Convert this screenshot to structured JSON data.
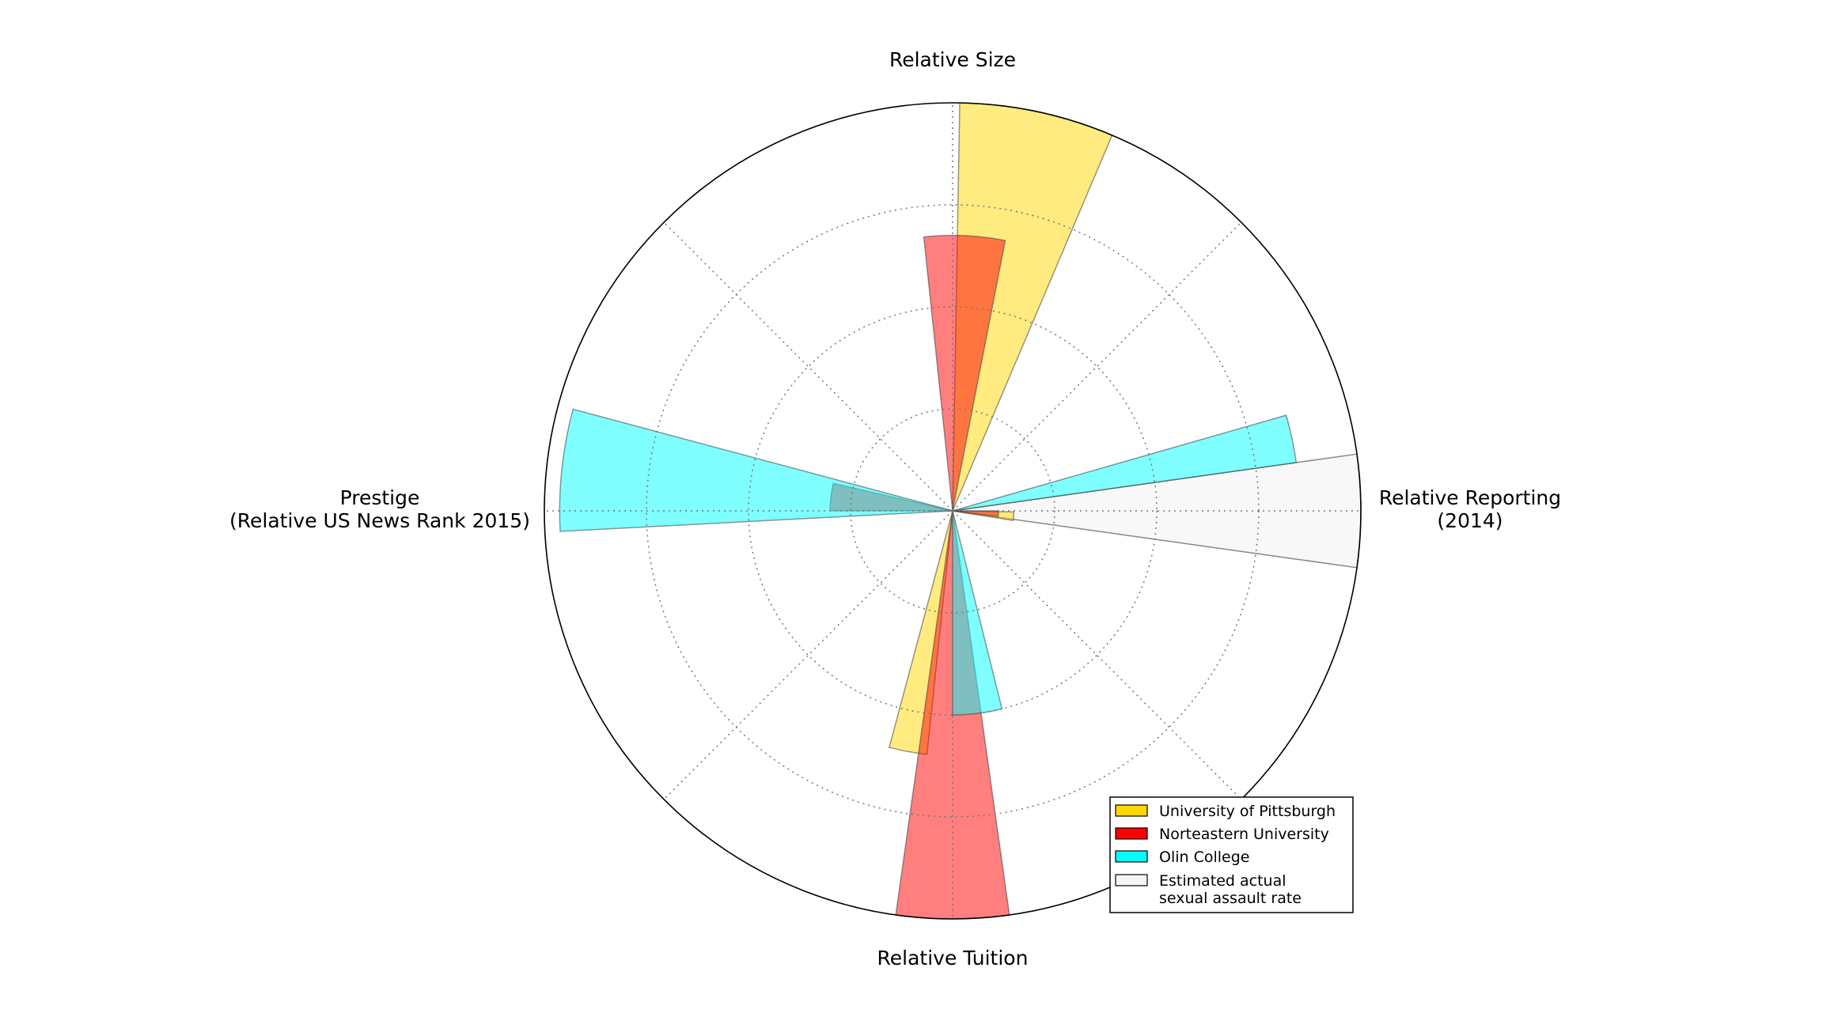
{
  "chart_data": {
    "type": "polar-bar",
    "title": "",
    "axes": [
      {
        "key": "size",
        "label": "Relative Size"
      },
      {
        "key": "reporting",
        "label_lines": [
          "Relative Reporting",
          "(2014)"
        ]
      },
      {
        "key": "tuition",
        "label": "Relative Tuition"
      },
      {
        "key": "prestige",
        "label_lines": [
          "Prestige",
          "(Relative US News Rank 2015)"
        ]
      }
    ],
    "rlim": [
      0,
      4
    ],
    "r_gridlines": [
      1,
      2,
      3,
      4
    ],
    "grid": true,
    "legend_position": "lower-right",
    "series": [
      {
        "name": "University of Pittsburgh",
        "color": "#ffd700",
        "values": {
          "size": 4.0,
          "reporting": 0.6,
          "tuition": 2.4,
          "prestige": 0.0
        }
      },
      {
        "name": "Norteastern University",
        "color": "#ff0000",
        "values": {
          "size": 2.7,
          "reporting": 0.45,
          "tuition": 4.0,
          "prestige": 1.2
        }
      },
      {
        "name": "Olin College",
        "color": "#00ffff",
        "values": {
          "size": 0.0,
          "reporting": 3.4,
          "tuition": 2.0,
          "prestige": 3.85
        }
      },
      {
        "name": "Estimated actual\nsexual assault rate",
        "legend_lines": [
          "Estimated actual",
          "sexual assault rate"
        ],
        "color": "#f5f5f5",
        "values": {
          "reporting": 4.0
        }
      }
    ]
  }
}
